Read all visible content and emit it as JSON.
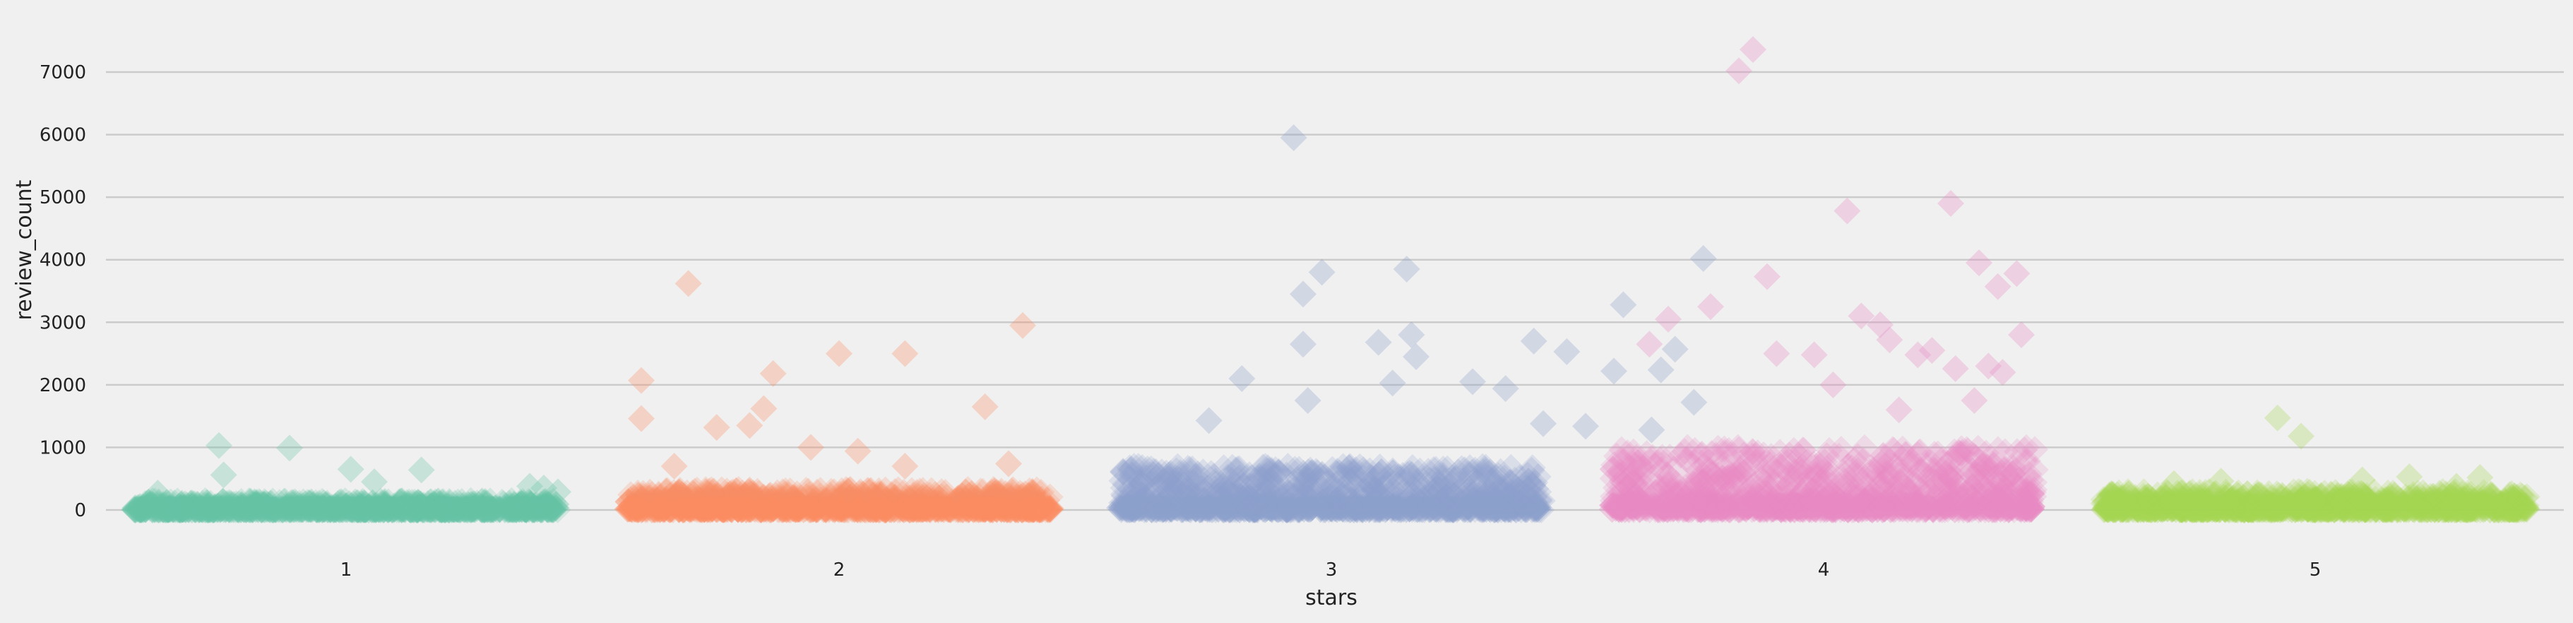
{
  "chart_data": {
    "type": "scatter",
    "subtype": "stripplot",
    "title": "",
    "xlabel": "stars",
    "ylabel": "review_count",
    "categories": [
      "1",
      "2",
      "3",
      "4",
      "5"
    ],
    "ylim": [
      -400,
      7700
    ],
    "yticks": [
      0,
      1000,
      2000,
      3000,
      4000,
      5000,
      6000,
      7000
    ],
    "grid": "horizontal",
    "legend": "none",
    "marker": "diamond",
    "series": [
      {
        "category": "1",
        "color": "#66c2a5",
        "dense_max": 150,
        "outliers": [
          [
            -0.27,
            1030
          ],
          [
            -0.26,
            560
          ],
          [
            -0.12,
            990
          ],
          [
            0.01,
            650
          ],
          [
            0.06,
            450
          ],
          [
            0.16,
            640
          ],
          [
            -0.4,
            270
          ],
          [
            0.39,
            380
          ],
          [
            0.42,
            350
          ],
          [
            0.45,
            290
          ]
        ]
      },
      {
        "category": "2",
        "color": "#fc8d62",
        "dense_max": 330,
        "outliers": [
          [
            -0.32,
            3620
          ],
          [
            -0.42,
            2070
          ],
          [
            -0.42,
            1460
          ],
          [
            -0.35,
            700
          ],
          [
            -0.26,
            1320
          ],
          [
            -0.19,
            1350
          ],
          [
            -0.16,
            1620
          ],
          [
            -0.14,
            2180
          ],
          [
            -0.06,
            1000
          ],
          [
            0.0,
            2500
          ],
          [
            0.04,
            940
          ],
          [
            0.14,
            2500
          ],
          [
            0.14,
            700
          ],
          [
            0.31,
            1650
          ],
          [
            0.39,
            2950
          ],
          [
            0.36,
            740
          ]
        ]
      },
      {
        "category": "3",
        "color": "#8da0cb",
        "dense_max": 700,
        "outliers": [
          [
            -0.08,
            5950
          ],
          [
            -0.02,
            3800
          ],
          [
            -0.06,
            3450
          ],
          [
            -0.06,
            2650
          ],
          [
            -0.05,
            1750
          ],
          [
            -0.19,
            2100
          ],
          [
            -0.26,
            1430
          ],
          [
            0.1,
            2680
          ],
          [
            0.16,
            3850
          ],
          [
            0.17,
            2800
          ],
          [
            0.18,
            2450
          ],
          [
            0.13,
            2030
          ],
          [
            0.3,
            2050
          ],
          [
            0.37,
            1940
          ],
          [
            0.45,
            1380
          ],
          [
            0.54,
            1340
          ],
          [
            0.43,
            2700
          ],
          [
            0.5,
            2530
          ],
          [
            0.62,
            3280
          ],
          [
            0.6,
            2220
          ],
          [
            0.7,
            2240
          ],
          [
            0.73,
            2570
          ],
          [
            0.77,
            1720
          ],
          [
            0.79,
            4020
          ],
          [
            0.68,
            1280
          ]
        ]
      },
      {
        "category": "4",
        "color": "#e78ac3",
        "dense_max": 1000,
        "outliers": [
          [
            -0.18,
            7020
          ],
          [
            -0.15,
            7360
          ],
          [
            -0.12,
            3730
          ],
          [
            -0.1,
            2500
          ],
          [
            -0.02,
            2480
          ],
          [
            -0.33,
            3050
          ],
          [
            -0.24,
            3250
          ],
          [
            -0.37,
            2650
          ],
          [
            0.08,
            3100
          ],
          [
            0.12,
            2960
          ],
          [
            0.14,
            2720
          ],
          [
            0.02,
            2000
          ],
          [
            0.2,
            2480
          ],
          [
            0.23,
            2550
          ],
          [
            0.28,
            2260
          ],
          [
            0.35,
            2300
          ],
          [
            0.38,
            2200
          ],
          [
            0.16,
            1600
          ],
          [
            0.32,
            1750
          ],
          [
            0.42,
            2800
          ],
          [
            0.41,
            3780
          ],
          [
            0.37,
            3570
          ],
          [
            0.33,
            3950
          ],
          [
            0.27,
            4900
          ],
          [
            0.05,
            4780
          ]
        ]
      },
      {
        "category": "5",
        "color": "#a6d854",
        "dense_max": 300,
        "outliers": [
          [
            -0.08,
            1470
          ],
          [
            -0.03,
            1180
          ],
          [
            0.2,
            530
          ],
          [
            0.1,
            480
          ],
          [
            0.35,
            520
          ],
          [
            -0.3,
            420
          ],
          [
            -0.2,
            460
          ],
          [
            0.3,
            380
          ]
        ]
      }
    ]
  }
}
